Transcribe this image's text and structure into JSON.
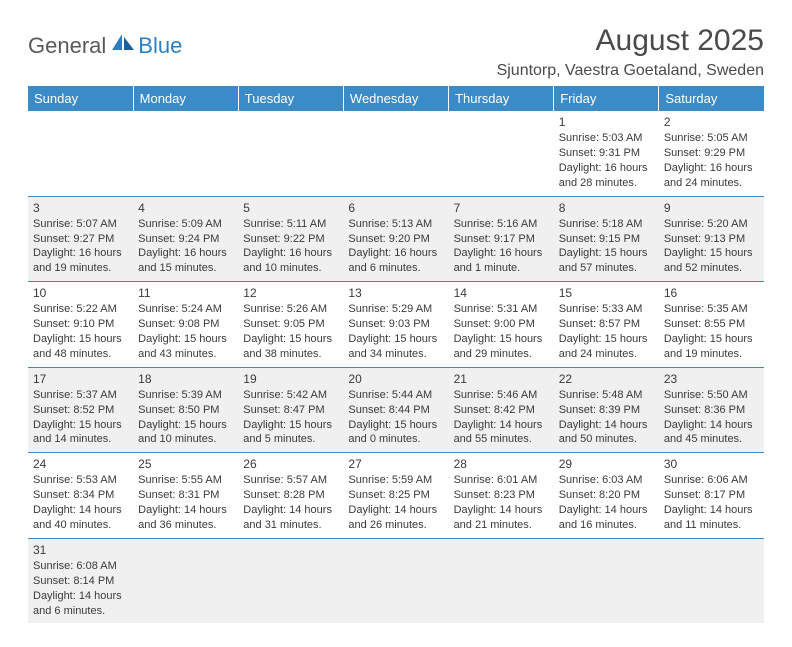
{
  "logo": {
    "part1": "General",
    "part2": "Blue"
  },
  "title": "August 2025",
  "location": "Sjuntorp, Vaestra Goetaland, Sweden",
  "colors": {
    "header_bg": "#3b8bc9",
    "header_text": "#ffffff",
    "alt_row_bg": "#f0f0f0",
    "row_bg": "#ffffff",
    "border": "#3b8bc9",
    "text": "#3a3a3a",
    "logo_gray": "#5a5a5a",
    "logo_blue": "#2b7fc3"
  },
  "day_headers": [
    "Sunday",
    "Monday",
    "Tuesday",
    "Wednesday",
    "Thursday",
    "Friday",
    "Saturday"
  ],
  "weeks": [
    {
      "alt": false,
      "days": [
        null,
        null,
        null,
        null,
        null,
        {
          "n": "1",
          "sunrise": "5:03 AM",
          "sunset": "9:31 PM",
          "daylight": "16 hours and 28 minutes."
        },
        {
          "n": "2",
          "sunrise": "5:05 AM",
          "sunset": "9:29 PM",
          "daylight": "16 hours and 24 minutes."
        }
      ]
    },
    {
      "alt": true,
      "days": [
        {
          "n": "3",
          "sunrise": "5:07 AM",
          "sunset": "9:27 PM",
          "daylight": "16 hours and 19 minutes."
        },
        {
          "n": "4",
          "sunrise": "5:09 AM",
          "sunset": "9:24 PM",
          "daylight": "16 hours and 15 minutes."
        },
        {
          "n": "5",
          "sunrise": "5:11 AM",
          "sunset": "9:22 PM",
          "daylight": "16 hours and 10 minutes."
        },
        {
          "n": "6",
          "sunrise": "5:13 AM",
          "sunset": "9:20 PM",
          "daylight": "16 hours and 6 minutes."
        },
        {
          "n": "7",
          "sunrise": "5:16 AM",
          "sunset": "9:17 PM",
          "daylight": "16 hours and 1 minute."
        },
        {
          "n": "8",
          "sunrise": "5:18 AM",
          "sunset": "9:15 PM",
          "daylight": "15 hours and 57 minutes."
        },
        {
          "n": "9",
          "sunrise": "5:20 AM",
          "sunset": "9:13 PM",
          "daylight": "15 hours and 52 minutes."
        }
      ]
    },
    {
      "alt": false,
      "days": [
        {
          "n": "10",
          "sunrise": "5:22 AM",
          "sunset": "9:10 PM",
          "daylight": "15 hours and 48 minutes."
        },
        {
          "n": "11",
          "sunrise": "5:24 AM",
          "sunset": "9:08 PM",
          "daylight": "15 hours and 43 minutes."
        },
        {
          "n": "12",
          "sunrise": "5:26 AM",
          "sunset": "9:05 PM",
          "daylight": "15 hours and 38 minutes."
        },
        {
          "n": "13",
          "sunrise": "5:29 AM",
          "sunset": "9:03 PM",
          "daylight": "15 hours and 34 minutes."
        },
        {
          "n": "14",
          "sunrise": "5:31 AM",
          "sunset": "9:00 PM",
          "daylight": "15 hours and 29 minutes."
        },
        {
          "n": "15",
          "sunrise": "5:33 AM",
          "sunset": "8:57 PM",
          "daylight": "15 hours and 24 minutes."
        },
        {
          "n": "16",
          "sunrise": "5:35 AM",
          "sunset": "8:55 PM",
          "daylight": "15 hours and 19 minutes."
        }
      ]
    },
    {
      "alt": true,
      "days": [
        {
          "n": "17",
          "sunrise": "5:37 AM",
          "sunset": "8:52 PM",
          "daylight": "15 hours and 14 minutes."
        },
        {
          "n": "18",
          "sunrise": "5:39 AM",
          "sunset": "8:50 PM",
          "daylight": "15 hours and 10 minutes."
        },
        {
          "n": "19",
          "sunrise": "5:42 AM",
          "sunset": "8:47 PM",
          "daylight": "15 hours and 5 minutes."
        },
        {
          "n": "20",
          "sunrise": "5:44 AM",
          "sunset": "8:44 PM",
          "daylight": "15 hours and 0 minutes."
        },
        {
          "n": "21",
          "sunrise": "5:46 AM",
          "sunset": "8:42 PM",
          "daylight": "14 hours and 55 minutes."
        },
        {
          "n": "22",
          "sunrise": "5:48 AM",
          "sunset": "8:39 PM",
          "daylight": "14 hours and 50 minutes."
        },
        {
          "n": "23",
          "sunrise": "5:50 AM",
          "sunset": "8:36 PM",
          "daylight": "14 hours and 45 minutes."
        }
      ]
    },
    {
      "alt": false,
      "days": [
        {
          "n": "24",
          "sunrise": "5:53 AM",
          "sunset": "8:34 PM",
          "daylight": "14 hours and 40 minutes."
        },
        {
          "n": "25",
          "sunrise": "5:55 AM",
          "sunset": "8:31 PM",
          "daylight": "14 hours and 36 minutes."
        },
        {
          "n": "26",
          "sunrise": "5:57 AM",
          "sunset": "8:28 PM",
          "daylight": "14 hours and 31 minutes."
        },
        {
          "n": "27",
          "sunrise": "5:59 AM",
          "sunset": "8:25 PM",
          "daylight": "14 hours and 26 minutes."
        },
        {
          "n": "28",
          "sunrise": "6:01 AM",
          "sunset": "8:23 PM",
          "daylight": "14 hours and 21 minutes."
        },
        {
          "n": "29",
          "sunrise": "6:03 AM",
          "sunset": "8:20 PM",
          "daylight": "14 hours and 16 minutes."
        },
        {
          "n": "30",
          "sunrise": "6:06 AM",
          "sunset": "8:17 PM",
          "daylight": "14 hours and 11 minutes."
        }
      ]
    },
    {
      "alt": true,
      "days": [
        {
          "n": "31",
          "sunrise": "6:08 AM",
          "sunset": "8:14 PM",
          "daylight": "14 hours and 6 minutes."
        },
        null,
        null,
        null,
        null,
        null,
        null
      ]
    }
  ],
  "labels": {
    "sunrise": "Sunrise: ",
    "sunset": "Sunset: ",
    "daylight": "Daylight: "
  }
}
